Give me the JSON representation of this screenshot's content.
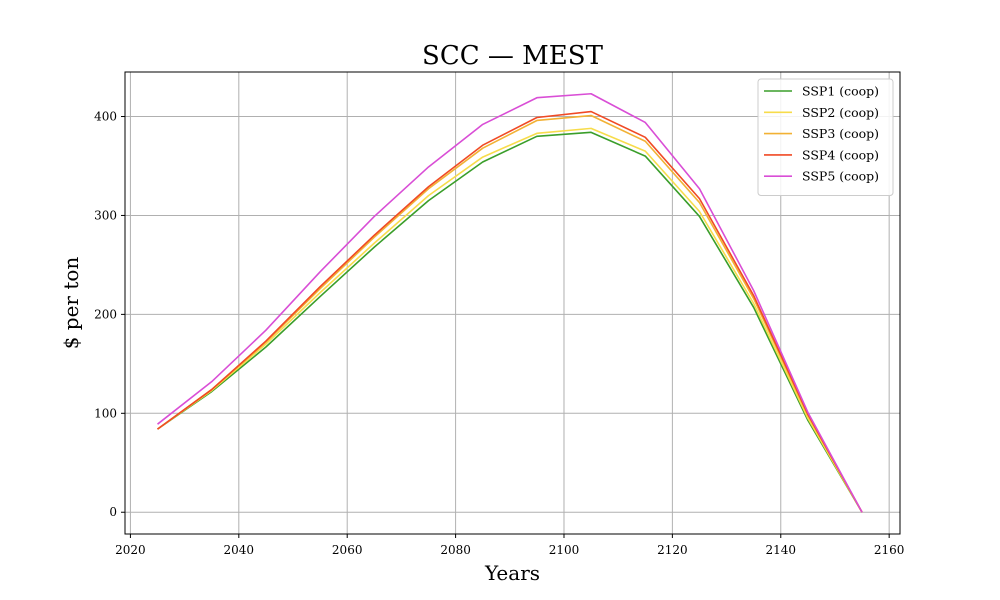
{
  "chart_data": {
    "type": "line",
    "title": "SCC — MEST",
    "xlabel": "Years",
    "ylabel": "$ per ton",
    "xlim": [
      2019,
      2162
    ],
    "ylim": [
      -22,
      445
    ],
    "xticks": [
      2020,
      2040,
      2060,
      2080,
      2100,
      2120,
      2140,
      2160
    ],
    "yticks": [
      0,
      100,
      200,
      300,
      400
    ],
    "grid": true,
    "legend_position": "top-right",
    "x": [
      2025,
      2035,
      2045,
      2055,
      2065,
      2075,
      2085,
      2095,
      2105,
      2115,
      2125,
      2135,
      2145,
      2155
    ],
    "series": [
      {
        "name": "SSP1 (coop)",
        "color": "#3a9e2a",
        "values": [
          84,
          122,
          167,
          218,
          268,
          315,
          354,
          380,
          384,
          360,
          299,
          207,
          93,
          0
        ]
      },
      {
        "name": "SSP2 (coop)",
        "color": "#f7dc4b",
        "values": [
          84,
          123,
          170,
          222,
          272,
          320,
          359,
          383,
          388,
          365,
          304,
          211,
          95,
          0
        ]
      },
      {
        "name": "SSP3 (coop)",
        "color": "#f2b134",
        "values": [
          84,
          124,
          172,
          226,
          278,
          327,
          368,
          396,
          401,
          375,
          313,
          216,
          98,
          0
        ]
      },
      {
        "name": "SSP4 (coop)",
        "color": "#f04a25",
        "values": [
          84,
          124,
          173,
          228,
          280,
          329,
          371,
          399,
          405,
          379,
          317,
          219,
          99,
          0
        ]
      },
      {
        "name": "SSP5 (coop)",
        "color": "#d94ed6",
        "values": [
          89,
          132,
          184,
          243,
          299,
          349,
          392,
          419,
          423,
          394,
          327,
          224,
          101,
          0
        ]
      }
    ]
  }
}
